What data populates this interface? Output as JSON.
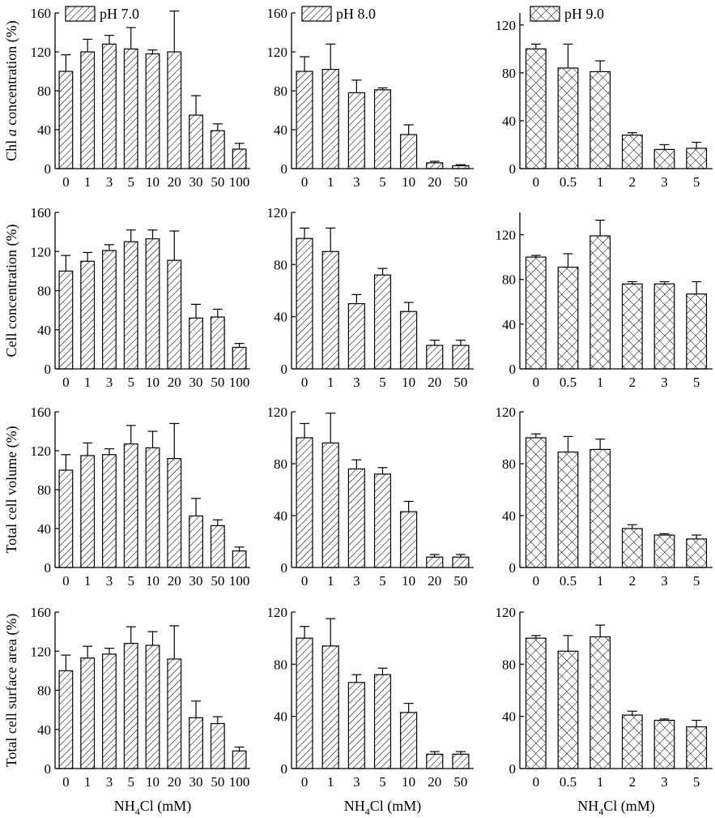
{
  "chart_data": [
    {
      "type": "bar",
      "row_label": "Chl a concentration (%)",
      "legend": "pH 7.0",
      "categories": [
        "0",
        "1",
        "3",
        "5",
        "10",
        "20",
        "30",
        "50",
        "100"
      ],
      "values": [
        100,
        120,
        128,
        123,
        118,
        120,
        55,
        39,
        20
      ],
      "errors": [
        17,
        13,
        9,
        22,
        4,
        42,
        20,
        7,
        6
      ],
      "ylim": [
        0,
        160
      ],
      "yticks": [
        0,
        40,
        80,
        120,
        160
      ],
      "xlabel": ""
    },
    {
      "type": "bar",
      "row_label": "",
      "legend": "pH 8.0",
      "categories": [
        "0",
        "1",
        "3",
        "5",
        "10",
        "20",
        "50"
      ],
      "values": [
        100,
        102,
        78,
        81,
        35,
        6,
        3
      ],
      "errors": [
        15,
        26,
        13,
        2,
        10,
        1.5,
        1
      ],
      "ylim": [
        0,
        160
      ],
      "yticks": [
        0,
        40,
        80,
        120,
        160
      ],
      "xlabel": ""
    },
    {
      "type": "bar",
      "row_label": "",
      "legend": "pH 9.0",
      "categories": [
        "0",
        "0.5",
        "1",
        "2",
        "3",
        "5"
      ],
      "values": [
        100,
        84,
        81,
        28,
        16,
        17
      ],
      "errors": [
        4,
        20,
        9,
        2,
        4,
        5
      ],
      "ylim": [
        0,
        130
      ],
      "yticks": [
        0,
        40,
        80,
        120
      ],
      "xlabel": ""
    },
    {
      "type": "bar",
      "row_label": "Cell concentration (%)",
      "legend": "",
      "categories": [
        "0",
        "1",
        "3",
        "5",
        "10",
        "20",
        "30",
        "50",
        "100"
      ],
      "values": [
        100,
        110,
        121,
        130,
        133,
        111,
        52,
        53,
        22
      ],
      "errors": [
        16,
        9,
        6,
        12,
        9,
        30,
        14,
        8,
        4
      ],
      "ylim": [
        0,
        160
      ],
      "yticks": [
        0,
        40,
        80,
        120,
        160
      ],
      "xlabel": ""
    },
    {
      "type": "bar",
      "row_label": "",
      "legend": "",
      "categories": [
        "0",
        "1",
        "3",
        "5",
        "10",
        "20",
        "50"
      ],
      "values": [
        100,
        90,
        50,
        72,
        44,
        18,
        18
      ],
      "errors": [
        8,
        18,
        7,
        5,
        7,
        4,
        4
      ],
      "ylim": [
        0,
        120
      ],
      "yticks": [
        0,
        40,
        80,
        120
      ],
      "xlabel": ""
    },
    {
      "type": "bar",
      "row_label": "",
      "legend": "",
      "categories": [
        "0",
        "0.5",
        "1",
        "2",
        "3",
        "5"
      ],
      "values": [
        100,
        91,
        119,
        76,
        76,
        67
      ],
      "errors": [
        1.5,
        12,
        14,
        2,
        2,
        11
      ],
      "ylim": [
        0,
        140
      ],
      "yticks": [
        0,
        40,
        80,
        120
      ],
      "xlabel": ""
    },
    {
      "type": "bar",
      "row_label": "Total cell volume (%)",
      "legend": "",
      "categories": [
        "0",
        "1",
        "3",
        "5",
        "10",
        "20",
        "30",
        "50",
        "100"
      ],
      "values": [
        100,
        115,
        116,
        127,
        123,
        112,
        53,
        43,
        17
      ],
      "errors": [
        16,
        13,
        6,
        19,
        17,
        36,
        18,
        6,
        4
      ],
      "ylim": [
        0,
        160
      ],
      "yticks": [
        0,
        40,
        80,
        120,
        160
      ],
      "xlabel": ""
    },
    {
      "type": "bar",
      "row_label": "",
      "legend": "",
      "categories": [
        "0",
        "1",
        "3",
        "5",
        "10",
        "20",
        "50"
      ],
      "values": [
        100,
        96,
        76,
        72,
        43,
        8,
        8
      ],
      "errors": [
        11,
        23,
        7,
        5,
        8,
        2,
        2
      ],
      "ylim": [
        0,
        120
      ],
      "yticks": [
        0,
        40,
        80,
        120
      ],
      "xlabel": ""
    },
    {
      "type": "bar",
      "row_label": "",
      "legend": "",
      "categories": [
        "0",
        "0.5",
        "1",
        "2",
        "3",
        "5"
      ],
      "values": [
        100,
        89,
        91,
        30,
        25,
        22
      ],
      "errors": [
        3,
        12,
        8,
        3,
        1,
        3
      ],
      "ylim": [
        0,
        120
      ],
      "yticks": [
        0,
        40,
        80,
        120
      ],
      "xlabel": ""
    },
    {
      "type": "bar",
      "row_label": "Total cell surface area (%)",
      "legend": "",
      "categories": [
        "0",
        "1",
        "3",
        "5",
        "10",
        "20",
        "30",
        "50",
        "100"
      ],
      "values": [
        100,
        113,
        117,
        128,
        126,
        112,
        52,
        46,
        18
      ],
      "errors": [
        16,
        12,
        6,
        17,
        14,
        34,
        17,
        7,
        4
      ],
      "ylim": [
        0,
        160
      ],
      "yticks": [
        0,
        40,
        80,
        120,
        160
      ],
      "xlabel": "NH4Cl (mM)"
    },
    {
      "type": "bar",
      "row_label": "",
      "legend": "",
      "categories": [
        "0",
        "1",
        "3",
        "5",
        "10",
        "20",
        "50"
      ],
      "values": [
        100,
        94,
        66,
        72,
        43,
        11,
        11
      ],
      "errors": [
        9,
        21,
        6,
        5,
        7,
        2,
        2
      ],
      "ylim": [
        0,
        120
      ],
      "yticks": [
        0,
        40,
        80,
        120
      ],
      "xlabel": "NH4Cl (mM)"
    },
    {
      "type": "bar",
      "row_label": "",
      "legend": "",
      "categories": [
        "0",
        "0.5",
        "1",
        "2",
        "3",
        "5"
      ],
      "values": [
        100,
        90,
        101,
        41,
        37,
        32
      ],
      "errors": [
        2,
        12,
        9,
        3,
        1,
        5
      ],
      "ylim": [
        0,
        120
      ],
      "yticks": [
        0,
        40,
        80,
        120
      ],
      "xlabel": "NH4Cl (mM)"
    }
  ],
  "x_label_main": "NH",
  "x_label_sub": "4",
  "x_label_rest": "Cl (mM)",
  "row_label_italic_prefix": "Chl ",
  "row_label_italic_mid": "a",
  "row_label_italic_rest": " concentration (%)"
}
